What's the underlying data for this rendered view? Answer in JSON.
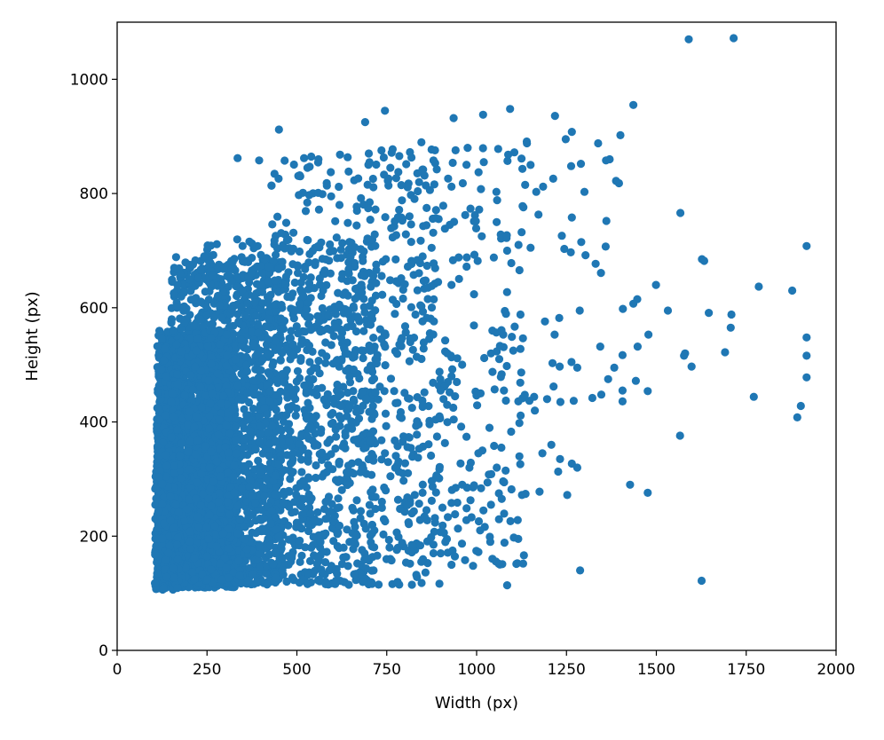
{
  "chart_data": {
    "type": "scatter",
    "title": "",
    "xlabel": "Width (px)",
    "ylabel": "Height (px)",
    "xlim": [
      0,
      2000
    ],
    "ylim": [
      0,
      1100
    ],
    "xticks": [
      0,
      250,
      500,
      750,
      1000,
      1250,
      1500,
      1750,
      2000
    ],
    "yticks": [
      0,
      200,
      400,
      600,
      800,
      1000
    ],
    "grid": false,
    "legend": "none",
    "colors": {
      "marker": "#1f77b4",
      "axis": "#000000",
      "background": "#ffffff"
    },
    "series": [
      {
        "points": [
          [
            1590,
            1070
          ],
          [
            1715,
            1072
          ],
          [
            1436,
            955
          ],
          [
            1093,
            948
          ],
          [
            745,
            945
          ],
          [
            1018,
            938
          ],
          [
            1218,
            936
          ],
          [
            936,
            932
          ],
          [
            690,
            925
          ],
          [
            1400,
            902
          ],
          [
            1265,
            908
          ],
          [
            1248,
            895
          ],
          [
            1140,
            888
          ],
          [
            975,
            880
          ],
          [
            1060,
            878
          ],
          [
            1105,
            872
          ],
          [
            1088,
            868
          ],
          [
            1370,
            860
          ],
          [
            1360,
            858
          ],
          [
            1338,
            888
          ],
          [
            1290,
            852
          ],
          [
            1263,
            848
          ],
          [
            1150,
            850
          ],
          [
            1020,
            855
          ],
          [
            880,
            858
          ],
          [
            760,
            845
          ],
          [
            700,
            870
          ],
          [
            620,
            868
          ],
          [
            560,
            860
          ],
          [
            520,
            862
          ],
          [
            450,
            912
          ],
          [
            335,
            862
          ],
          [
            395,
            858
          ],
          [
            1396,
            818
          ],
          [
            1388,
            822
          ],
          [
            1300,
            803
          ],
          [
            1213,
            826
          ],
          [
            1185,
            812
          ],
          [
            1166,
            803
          ],
          [
            1135,
            815
          ],
          [
            1055,
            803
          ],
          [
            930,
            812
          ],
          [
            870,
            806
          ],
          [
            840,
            820
          ],
          [
            1567,
            766
          ],
          [
            1361,
            752
          ],
          [
            1265,
            758
          ],
          [
            1172,
            763
          ],
          [
            1128,
            778
          ],
          [
            1237,
            726
          ],
          [
            1291,
            715
          ],
          [
            1262,
            697
          ],
          [
            1244,
            703
          ],
          [
            1303,
            692
          ],
          [
            1331,
            677
          ],
          [
            1346,
            661
          ],
          [
            1359,
            707
          ],
          [
            1150,
            705
          ],
          [
            1085,
            700
          ],
          [
            1048,
            688
          ],
          [
            1003,
            682
          ],
          [
            972,
            672
          ],
          [
            930,
            640
          ],
          [
            865,
            635
          ],
          [
            1627,
            685
          ],
          [
            1633,
            682
          ],
          [
            1785,
            637
          ],
          [
            1878,
            630
          ],
          [
            1918,
            708
          ],
          [
            1709,
            588
          ],
          [
            1646,
            591
          ],
          [
            1532,
            595
          ],
          [
            1499,
            640
          ],
          [
            1447,
            615
          ],
          [
            1436,
            607
          ],
          [
            1407,
            598
          ],
          [
            1287,
            595
          ],
          [
            1230,
            582
          ],
          [
            1217,
            553
          ],
          [
            1190,
            576
          ],
          [
            1122,
            588
          ],
          [
            1106,
            567
          ],
          [
            1098,
            549
          ],
          [
            1074,
            553
          ],
          [
            1044,
            560
          ],
          [
            1065,
            533
          ],
          [
            1577,
            516
          ],
          [
            1598,
            497
          ],
          [
            1478,
            553
          ],
          [
            1448,
            532
          ],
          [
            1406,
            517
          ],
          [
            1383,
            495
          ],
          [
            1344,
            532
          ],
          [
            1280,
            495
          ],
          [
            1264,
            505
          ],
          [
            1231,
            497
          ],
          [
            1211,
            503
          ],
          [
            1122,
            528
          ],
          [
            1102,
            525
          ],
          [
            1084,
            498
          ],
          [
            1063,
            510
          ],
          [
            1040,
            520
          ],
          [
            1918,
            548
          ],
          [
            1918,
            516
          ],
          [
            1918,
            478
          ],
          [
            1902,
            428
          ],
          [
            1892,
            408
          ],
          [
            1771,
            444
          ],
          [
            1707,
            565
          ],
          [
            1691,
            522
          ],
          [
            1580,
            520
          ],
          [
            1476,
            454
          ],
          [
            1443,
            472
          ],
          [
            1406,
            455
          ],
          [
            1406,
            436
          ],
          [
            1366,
            475
          ],
          [
            1347,
            448
          ],
          [
            1322,
            442
          ],
          [
            1270,
            437
          ],
          [
            1233,
            435
          ],
          [
            1214,
            462
          ],
          [
            1196,
            440
          ],
          [
            1160,
            444
          ],
          [
            1147,
            437
          ],
          [
            1116,
            436
          ],
          [
            1076,
            455
          ],
          [
            1050,
            457
          ],
          [
            1011,
            450
          ],
          [
            930,
            480
          ],
          [
            920,
            470
          ],
          [
            910,
            462
          ],
          [
            900,
            455
          ],
          [
            940,
            445
          ],
          [
            925,
            452
          ],
          [
            908,
            440
          ],
          [
            918,
            430
          ],
          [
            935,
            425
          ],
          [
            945,
            470
          ],
          [
            1566,
            376
          ],
          [
            1427,
            290
          ],
          [
            1476,
            276
          ],
          [
            1288,
            140
          ],
          [
            1626,
            122
          ],
          [
            1265,
            327
          ],
          [
            1280,
            320
          ],
          [
            1232,
            335
          ],
          [
            1227,
            313
          ],
          [
            1208,
            360
          ],
          [
            1183,
            345
          ],
          [
            1162,
            420
          ],
          [
            1119,
            398
          ],
          [
            1096,
            383
          ],
          [
            1069,
            355
          ],
          [
            1056,
            320
          ],
          [
            1034,
            308
          ],
          [
            1016,
            350
          ],
          [
            1005,
            345
          ],
          [
            980,
            320
          ],
          [
            960,
            290
          ],
          [
            1252,
            272
          ],
          [
            1175,
            278
          ],
          [
            1136,
            274
          ],
          [
            1097,
            282
          ],
          [
            1062,
            275
          ],
          [
            1040,
            255
          ],
          [
            1019,
            245
          ],
          [
            986,
            233
          ],
          [
            930,
            258
          ],
          [
            905,
            250
          ],
          [
            875,
            262
          ],
          [
            840,
            257
          ],
          [
            820,
            240
          ],
          [
            990,
            148
          ],
          [
            1085,
            114
          ],
          [
            880,
            185
          ],
          [
            900,
            170
          ],
          [
            930,
            150
          ],
          [
            968,
            158
          ],
          [
            1010,
            210
          ],
          [
            1038,
            190
          ],
          [
            820,
            115
          ],
          [
            780,
            120
          ],
          [
            760,
            160
          ]
        ],
        "dense_clouds": [
          {
            "count": 2600,
            "x_range": [
              110,
              330
            ],
            "y_range": [
              110,
              560
            ]
          },
          {
            "count": 1300,
            "x_range": [
              150,
              460
            ],
            "y_range": [
              115,
              690
            ]
          },
          {
            "count": 900,
            "x_range": [
              250,
              720
            ],
            "y_range": [
              115,
              720
            ]
          },
          {
            "count": 500,
            "x_range": [
              420,
              900
            ],
            "y_range": [
              115,
              870
            ]
          },
          {
            "count": 250,
            "x_range": [
              700,
              1140
            ],
            "y_range": [
              150,
              900
            ]
          },
          {
            "count": 180,
            "x_range": [
              105,
              180
            ],
            "y_range": [
              105,
              360
            ]
          }
        ]
      }
    ]
  }
}
